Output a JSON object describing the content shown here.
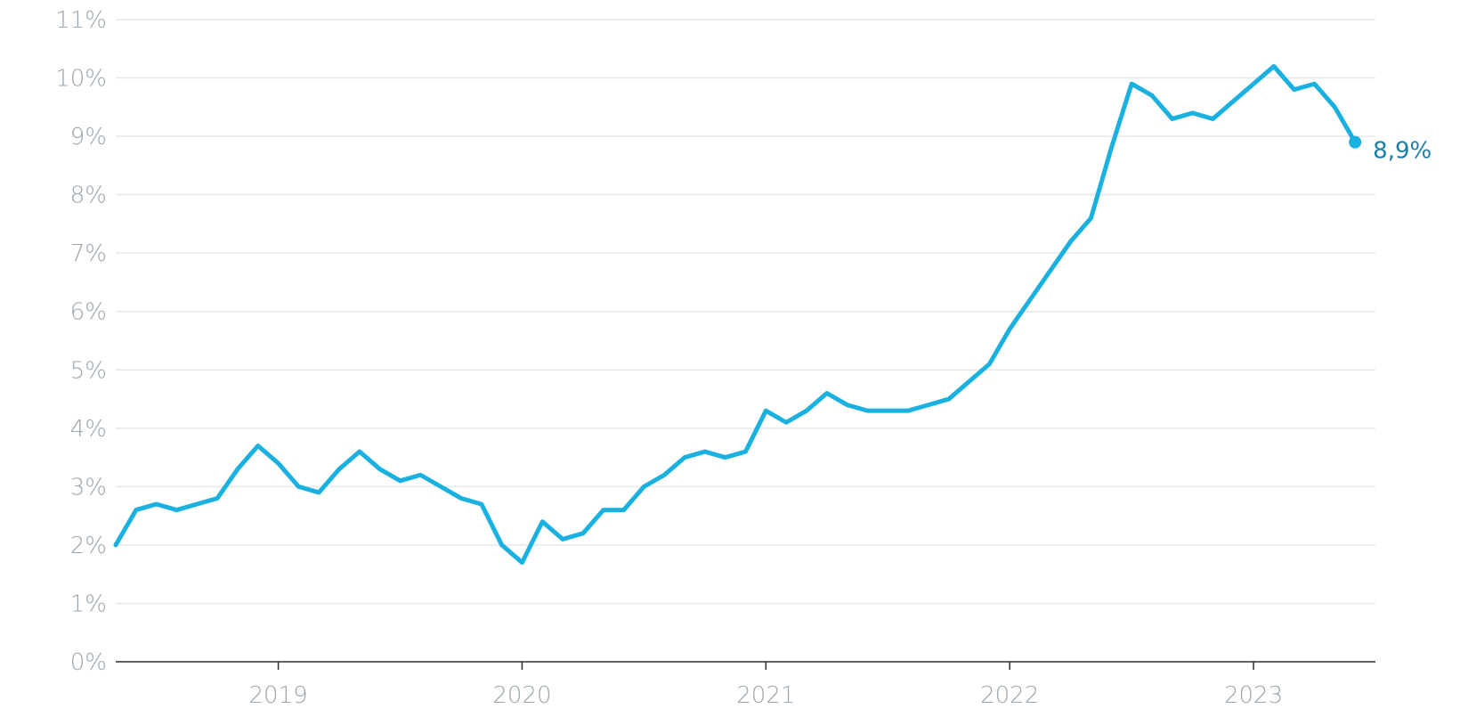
{
  "chart_data": {
    "type": "line",
    "title": "",
    "xlabel": "",
    "ylabel": "",
    "ylim": [
      0,
      11
    ],
    "y_ticks": [
      0,
      1,
      2,
      3,
      4,
      5,
      6,
      7,
      8,
      9,
      10,
      11
    ],
    "y_tick_labels": [
      "0%",
      "1%",
      "2%",
      "3%",
      "4%",
      "5%",
      "6%",
      "7%",
      "8%",
      "9%",
      "10%",
      "11%"
    ],
    "x_ticks": [
      "2019-01",
      "2020-01",
      "2021-01",
      "2022-01",
      "2023-01"
    ],
    "x_tick_labels": [
      "2019",
      "2020",
      "2021",
      "2022",
      "2023"
    ],
    "xlim": [
      "2018-05",
      "2023-07"
    ],
    "grid": true,
    "legend": "none",
    "line_color": "#1ab0e0",
    "end_label_color": "#1a7fa8",
    "end_label": "8,9%",
    "series": [
      {
        "x": [
          "2018-05",
          "2018-06",
          "2018-07",
          "2018-08",
          "2018-09",
          "2018-10",
          "2018-11",
          "2018-12",
          "2019-01",
          "2019-02",
          "2019-03",
          "2019-04",
          "2019-05",
          "2019-06",
          "2019-07",
          "2019-08",
          "2019-09",
          "2019-10",
          "2019-11",
          "2019-12",
          "2020-01",
          "2020-02",
          "2020-03",
          "2020-04",
          "2020-05",
          "2020-06",
          "2020-07",
          "2020-08",
          "2020-09",
          "2020-10",
          "2020-11",
          "2020-12",
          "2021-01",
          "2021-02",
          "2021-03",
          "2021-04",
          "2021-05",
          "2021-06",
          "2021-07",
          "2021-08",
          "2021-09",
          "2021-10",
          "2021-11",
          "2021-12",
          "2022-01",
          "2022-02",
          "2022-03",
          "2022-04",
          "2022-05",
          "2022-06",
          "2022-07",
          "2022-08",
          "2022-09",
          "2022-10",
          "2022-11",
          "2022-12",
          "2023-01",
          "2023-02",
          "2023-03",
          "2023-04",
          "2023-05",
          "2023-06"
        ],
        "values": [
          2.0,
          2.6,
          2.7,
          2.6,
          2.7,
          2.8,
          3.3,
          3.7,
          3.4,
          3.0,
          2.9,
          3.3,
          3.6,
          3.3,
          3.1,
          3.2,
          3.0,
          2.8,
          2.7,
          2.0,
          1.7,
          2.4,
          2.1,
          2.2,
          2.6,
          2.6,
          3.0,
          3.2,
          3.5,
          3.6,
          3.5,
          3.6,
          4.3,
          4.1,
          4.3,
          4.6,
          4.4,
          4.3,
          4.3,
          4.3,
          4.4,
          4.5,
          4.8,
          5.1,
          5.7,
          6.2,
          6.7,
          7.2,
          7.6,
          8.8,
          9.9,
          9.7,
          9.3,
          9.4,
          9.3,
          9.6,
          9.9,
          10.2,
          9.8,
          9.9,
          9.5,
          8.9
        ]
      }
    ]
  }
}
